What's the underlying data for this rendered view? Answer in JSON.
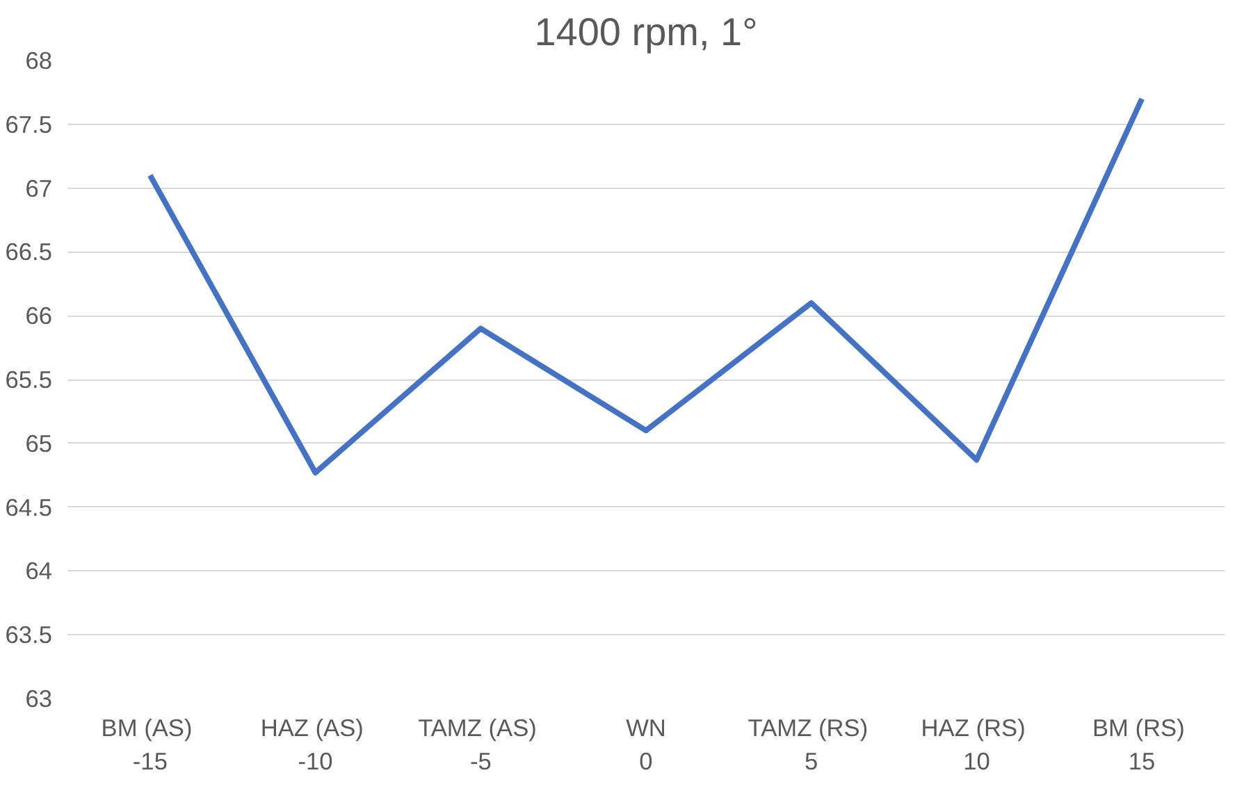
{
  "chart_data": {
    "type": "line",
    "title": "1400 rpm, 1°",
    "categories": [
      "BM  (AS)\n-15",
      "HAZ  (AS)\n-10",
      "TAMZ  (AS)\n-5",
      "WN\n0",
      "TAMZ  (RS)\n5",
      "HAZ  (RS)\n10",
      "BM  (RS)\n15"
    ],
    "series": [
      {
        "color": "#4472c4",
        "values": [
          67.1,
          64.77,
          65.9,
          65.1,
          66.1,
          64.87,
          67.7
        ]
      }
    ],
    "ylim": [
      63,
      68
    ],
    "yticks": [
      63,
      63.5,
      64,
      64.5,
      65,
      65.5,
      66,
      66.5,
      67,
      67.5,
      68
    ],
    "grid": "y",
    "marker": "none",
    "line_style": "solid"
  }
}
